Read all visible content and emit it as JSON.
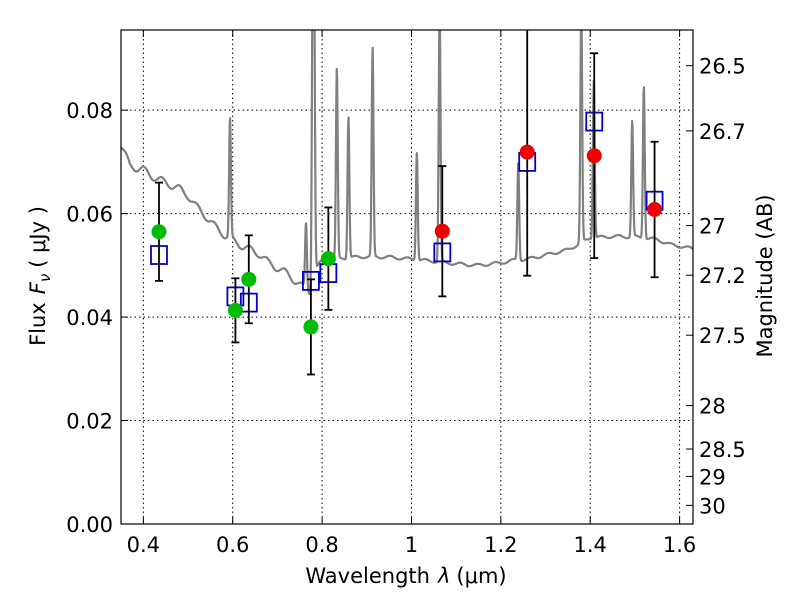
{
  "chart_data": {
    "type": "scatter",
    "xlabel_pre": "Wavelength",
    "xlabel_sym": "λ",
    "xlabel_unit": "(μm)",
    "ylabel_pre": "Flux",
    "ylabel_sym": "F",
    "ylabel_sub": "ν",
    "ylabel_unit": "( μJy )",
    "ylabel_right": "Magnitude (AB)",
    "xlim": [
      0.35,
      1.63
    ],
    "ylim": [
      0.0,
      0.0955
    ],
    "xticks": [
      0.4,
      0.6,
      0.8,
      1.0,
      1.2,
      1.4,
      1.6
    ],
    "xtick_labels": [
      "0.4",
      "0.6",
      "0.8",
      "1",
      "1.2",
      "1.4",
      "1.6"
    ],
    "yticks": [
      0.0,
      0.02,
      0.04,
      0.06,
      0.08
    ],
    "ytick_labels": [
      "0.00",
      "0.02",
      "0.04",
      "0.06",
      "0.08"
    ],
    "right_ticks": [
      {
        "label": "26.5",
        "flux": 0.0886
      },
      {
        "label": "26.7",
        "flux": 0.076
      },
      {
        "label": "27",
        "flux": 0.0577
      },
      {
        "label": "27.2",
        "flux": 0.0481
      },
      {
        "label": "27.5",
        "flux": 0.0365
      },
      {
        "label": "28",
        "flux": 0.0229
      },
      {
        "label": "28.5",
        "flux": 0.0145
      },
      {
        "label": "29",
        "flux": 0.0092
      },
      {
        "label": "30",
        "flux": 0.0036
      }
    ],
    "colors": {
      "optical": "#00bb00",
      "nir": "#ee0000",
      "model": "#0000cc",
      "sed": "#808080"
    },
    "observed": [
      {
        "x": 0.435,
        "y": 0.0565,
        "err_lo": 0.0095,
        "err_hi": 0.0095,
        "band": "optical"
      },
      {
        "x": 0.606,
        "y": 0.0413,
        "err_lo": 0.0062,
        "err_hi": 0.0062,
        "band": "optical"
      },
      {
        "x": 0.636,
        "y": 0.0473,
        "err_lo": 0.0085,
        "err_hi": 0.0085,
        "band": "optical"
      },
      {
        "x": 0.775,
        "y": 0.0381,
        "err_lo": 0.0092,
        "err_hi": 0.0092,
        "band": "optical"
      },
      {
        "x": 0.814,
        "y": 0.0513,
        "err_lo": 0.0099,
        "err_hi": 0.0099,
        "band": "optical"
      },
      {
        "x": 1.069,
        "y": 0.0566,
        "err_lo": 0.0126,
        "err_hi": 0.0126,
        "band": "nir"
      },
      {
        "x": 1.259,
        "y": 0.0719,
        "err_lo": 0.0239,
        "err_hi": 0.0239,
        "band": "nir"
      },
      {
        "x": 1.409,
        "y": 0.0712,
        "err_lo": 0.0198,
        "err_hi": 0.0198,
        "band": "nir"
      },
      {
        "x": 1.544,
        "y": 0.0608,
        "err_lo": 0.0131,
        "err_hi": 0.0131,
        "band": "nir"
      }
    ],
    "model_photometry": [
      {
        "x": 0.435,
        "y": 0.052
      },
      {
        "x": 0.606,
        "y": 0.044
      },
      {
        "x": 0.636,
        "y": 0.0428
      },
      {
        "x": 0.775,
        "y": 0.047
      },
      {
        "x": 0.814,
        "y": 0.0485
      },
      {
        "x": 1.069,
        "y": 0.0525
      },
      {
        "x": 1.259,
        "y": 0.07
      },
      {
        "x": 1.409,
        "y": 0.0778
      },
      {
        "x": 1.544,
        "y": 0.0625
      }
    ],
    "sed_curve": {
      "continuum": [
        [
          0.35,
          0.0732
        ],
        [
          0.37,
          0.0693
        ],
        [
          0.385,
          0.0688
        ],
        [
          0.4,
          0.0685
        ],
        [
          0.42,
          0.0672
        ],
        [
          0.45,
          0.066
        ],
        [
          0.48,
          0.0648
        ],
        [
          0.5,
          0.0635
        ],
        [
          0.52,
          0.0612
        ],
        [
          0.54,
          0.0595
        ],
        [
          0.56,
          0.0575
        ],
        [
          0.58,
          0.056
        ],
        [
          0.6,
          0.0548
        ],
        [
          0.62,
          0.0538
        ],
        [
          0.64,
          0.053
        ],
        [
          0.66,
          0.0522
        ],
        [
          0.68,
          0.0505
        ],
        [
          0.7,
          0.0495
        ],
        [
          0.72,
          0.0485
        ],
        [
          0.74,
          0.047
        ],
        [
          0.76,
          0.0455
        ],
        [
          0.775,
          0.0448
        ],
        [
          0.78,
          0.0485
        ],
        [
          0.8,
          0.0505
        ],
        [
          0.83,
          0.0512
        ],
        [
          0.86,
          0.0515
        ],
        [
          0.9,
          0.0517
        ],
        [
          0.95,
          0.0516
        ],
        [
          1.0,
          0.0512
        ],
        [
          1.05,
          0.0508
        ],
        [
          1.1,
          0.0503
        ],
        [
          1.15,
          0.05
        ],
        [
          1.2,
          0.0505
        ],
        [
          1.23,
          0.051
        ],
        [
          1.26,
          0.0512
        ],
        [
          1.3,
          0.052
        ],
        [
          1.35,
          0.053
        ],
        [
          1.4,
          0.0553
        ],
        [
          1.45,
          0.0556
        ],
        [
          1.5,
          0.0555
        ],
        [
          1.55,
          0.055
        ],
        [
          1.58,
          0.054
        ],
        [
          1.6,
          0.0537
        ],
        [
          1.63,
          0.0532
        ]
      ],
      "lines": [
        {
          "x": 0.594,
          "peak": 0.078
        },
        {
          "x": 0.764,
          "peak": 0.058
        },
        {
          "x": 0.779,
          "peak": 0.1
        },
        {
          "x": 0.782,
          "peak": 0.1
        },
        {
          "x": 0.833,
          "peak": 0.088
        },
        {
          "x": 0.859,
          "peak": 0.079
        },
        {
          "x": 0.913,
          "peak": 0.092
        },
        {
          "x": 1.012,
          "peak": 0.072
        },
        {
          "x": 1.063,
          "peak": 0.1
        },
        {
          "x": 1.239,
          "peak": 0.07
        },
        {
          "x": 1.38,
          "peak": 0.1
        },
        {
          "x": 1.408,
          "peak": 0.086
        },
        {
          "x": 1.494,
          "peak": 0.078
        },
        {
          "x": 1.52,
          "peak": 0.085
        }
      ]
    }
  }
}
